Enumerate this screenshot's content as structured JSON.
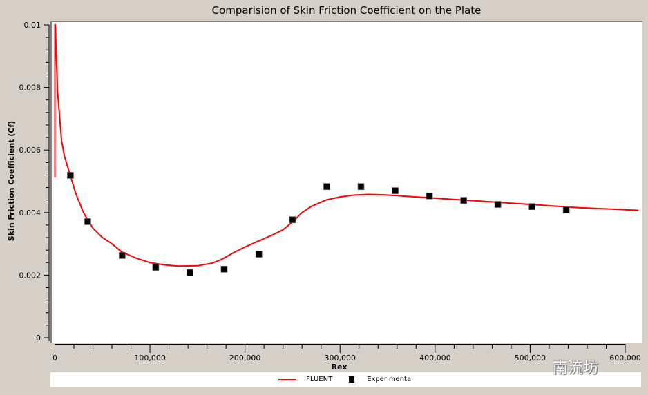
{
  "chart_data": {
    "type": "line",
    "title": "Comparision of Skin Friction Coefficient on the Plate",
    "xlabel": "Rex",
    "ylabel": "Skin Friction Coefficient (Cf)",
    "xlim": [
      0,
      614000
    ],
    "ylim": [
      0,
      0.01
    ],
    "x_ticks": [
      0,
      100000,
      200000,
      300000,
      400000,
      500000,
      600000
    ],
    "x_tick_labels": [
      "0",
      "100,000",
      "200,000",
      "300,000",
      "400,000",
      "500,000",
      "600,000"
    ],
    "y_ticks": [
      0,
      0.002,
      0.004,
      0.006,
      0.008,
      0.01
    ],
    "y_tick_labels": [
      "0",
      "0.002",
      "0.004",
      "0.006",
      "0.008",
      "0.01"
    ],
    "legend_position": "bottom",
    "grid": false,
    "series": [
      {
        "name": "FLUENT",
        "kind": "line",
        "color": "#ff0000",
        "x": [
          0,
          0,
          500,
          1500,
          3000,
          7000,
          10000,
          16000,
          22000,
          30000,
          40000,
          50000,
          60000,
          70000,
          85000,
          100000,
          115000,
          130000,
          150000,
          165000,
          175000,
          190000,
          200000,
          215000,
          230000,
          240000,
          250000,
          260000,
          270000,
          285000,
          300000,
          315000,
          330000,
          345000,
          360000,
          400000,
          450000,
          500000,
          550000,
          600000,
          614000
        ],
        "y": [
          0.00512,
          0.01,
          0.01,
          0.0089,
          0.0078,
          0.0063,
          0.0058,
          0.0052,
          0.0046,
          0.004,
          0.0035,
          0.0032,
          0.003,
          0.00275,
          0.00255,
          0.0024,
          0.00233,
          0.00229,
          0.0023,
          0.00238,
          0.0025,
          0.00275,
          0.0029,
          0.0031,
          0.0033,
          0.00345,
          0.0037,
          0.004,
          0.0042,
          0.0044,
          0.0045,
          0.00456,
          0.00458,
          0.00457,
          0.00454,
          0.00446,
          0.00436,
          0.00426,
          0.00416,
          0.00409,
          0.00407
        ]
      },
      {
        "name": "Experimental",
        "kind": "scatter",
        "color": "#000000",
        "x": [
          16300,
          34500,
          70800,
          106000,
          142000,
          178000,
          214600,
          250000,
          286000,
          322000,
          358000,
          394000,
          430000,
          466000,
          502000,
          538000
        ],
        "y": [
          0.00519,
          0.00371,
          0.00263,
          0.00225,
          0.00208,
          0.00219,
          0.00267,
          0.00377,
          0.00483,
          0.00483,
          0.0047,
          0.00453,
          0.00439,
          0.00426,
          0.00419,
          0.00408
        ]
      }
    ]
  },
  "watermark": "南流坊"
}
